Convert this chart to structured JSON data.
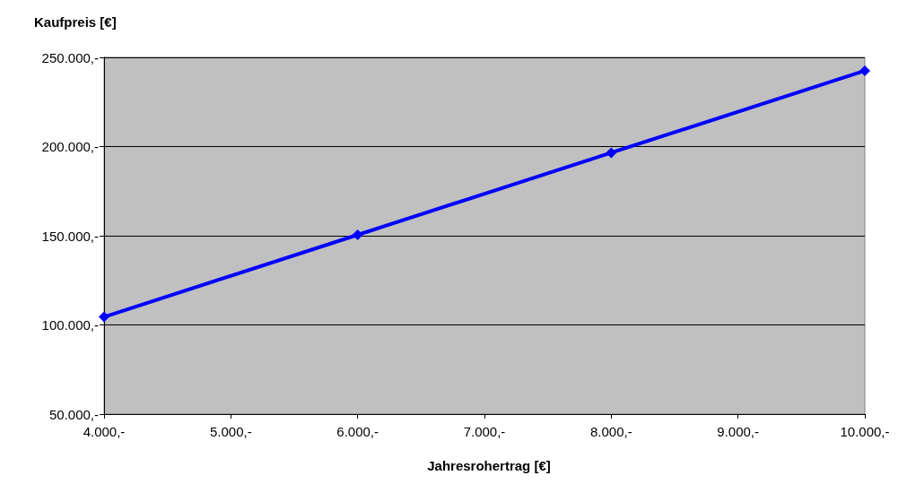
{
  "chart_data": {
    "type": "line",
    "xlabel": "Jahresrohertrag [€]",
    "ylabel": "Kaufpreis [€]",
    "x": [
      4000,
      6000,
      8000,
      10000
    ],
    "series": [
      {
        "color": "#0000ff",
        "values": [
          104500,
          150500,
          196500,
          242500
        ]
      }
    ],
    "xlim": [
      4000,
      10000
    ],
    "xticks": [
      {
        "value": 4000,
        "label": "4.000,-"
      },
      {
        "value": 5000,
        "label": "5.000,-"
      },
      {
        "value": 6000,
        "label": "6.000,-"
      },
      {
        "value": 7000,
        "label": "7.000,-"
      },
      {
        "value": 8000,
        "label": "8.000,-"
      },
      {
        "value": 9000,
        "label": "9.000,-"
      },
      {
        "value": 10000,
        "label": "10.000,-"
      }
    ],
    "ylim": [
      50000,
      250000
    ],
    "yticks": [
      {
        "value": 50000,
        "label": "50.000,-"
      },
      {
        "value": 100000,
        "label": "100.000,-"
      },
      {
        "value": 150000,
        "label": "150.000,-"
      },
      {
        "value": 200000,
        "label": "200.000,-"
      },
      {
        "value": 250000,
        "label": "250.000,-"
      }
    ],
    "grid": "y",
    "marker": "diamond",
    "line_style": "solid"
  }
}
